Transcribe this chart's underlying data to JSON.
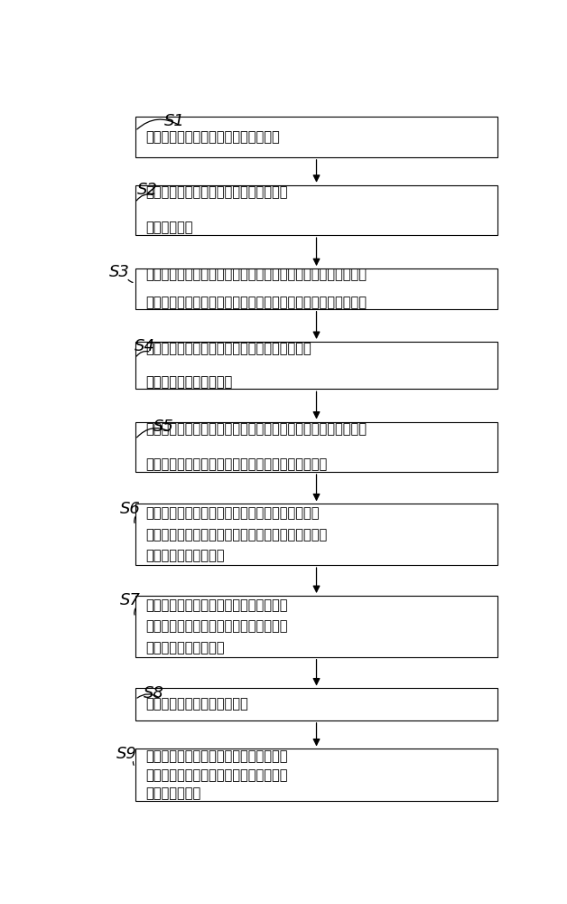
{
  "steps": [
    {
      "label": "S1",
      "lines": [
        "在盾构组装与出土竟井内安装盾构基座"
      ]
    },
    {
      "label": "S2",
      "lines": [
        "在所述盾构组装与出土竟井内组装盾构机",
        "的前盾和中盾"
      ]
    },
    {
      "label": "S3",
      "lines": [
        "所述盾构机的所述前盾和所述中盾同时向前移动，所述前盾移动",
        "至盾构平移横通道上端，在组装井内将盾尾吸装于所述中盾后端"
      ]
    },
    {
      "label": "S4",
      "lines": [
        "在所述盾构平移横通道内平移和调整盾构机的姿",
        "态，盾构机进入旋转位置"
      ]
    },
    {
      "label": "S5",
      "lines": [
        "所述盾构机移动至所述盾构平移横通道与盾构转向暗掘隧道交接",
        "处，所述盾构机转体平移进入所述盾构转向暗掘隧道"
      ]
    },
    {
      "label": "S6",
      "lines": [
        "所述盾构机由所述盾构转向暗掘隧道进入盾构始发",
        "位置暗掘隧道，在所述分体始发台车布置暗掘隧道内",
        "安装盾构后续台车装置"
      ]
    },
    {
      "label": "S7",
      "lines": [
        "在所述盾构转向暗掘隧道内安装盾构反力",
        "架及电瓶车运输轨道，盾构管片运输至所",
        "述盾构转向暗掘隧道内"
      ]
    },
    {
      "label": "S8",
      "lines": [
        "所述盾构机进行分体始发施工"
      ]
    },
    {
      "label": "S9",
      "lines": [
        "所述盾构机在需要掘进的盾构区间进行掘",
        "进，掘掘出盾构隧道，并在所述盾构隧道",
        "内拼装盾构管片"
      ]
    }
  ],
  "box_color": "#ffffff",
  "box_edge_color": "#000000",
  "text_color": "#000000",
  "arrow_color": "#000000",
  "label_color": "#000000",
  "bg_color": "#ffffff",
  "font_size": 10.5,
  "label_font_size": 13
}
